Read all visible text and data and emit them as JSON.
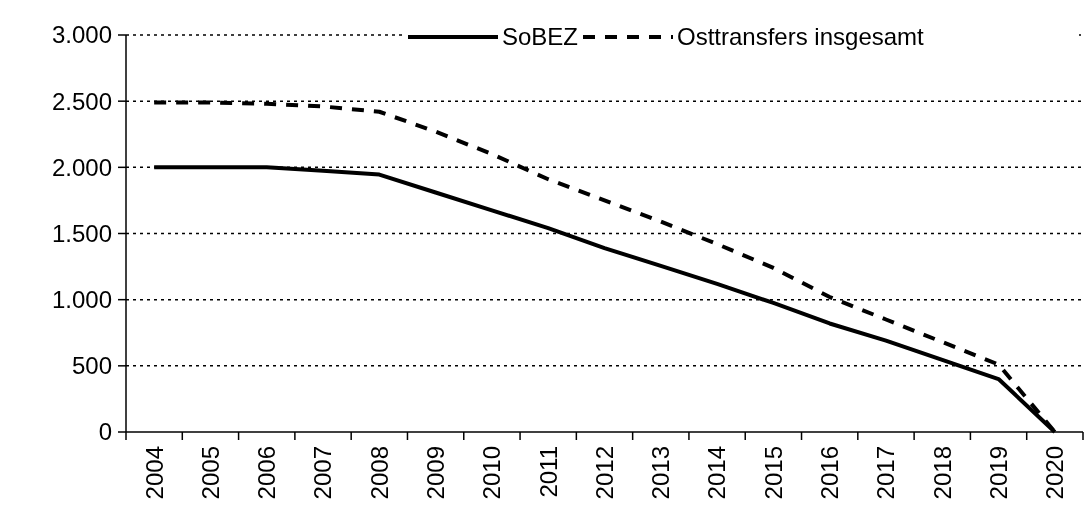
{
  "chart_data": {
    "type": "line",
    "categories": [
      "2004",
      "2005",
      "2006",
      "2007",
      "2008",
      "2009",
      "2010",
      "2011",
      "2012",
      "2013",
      "2014",
      "2015",
      "2016",
      "2017",
      "2018",
      "2019",
      "2020"
    ],
    "series": [
      {
        "name": "SoBEZ",
        "color": "#000000",
        "line_style": "solid",
        "values": [
          2000,
          2000,
          2000,
          1975,
          1945,
          1810,
          1675,
          1540,
          1390,
          1255,
          1120,
          975,
          820,
          690,
          545,
          400,
          0
        ]
      },
      {
        "name": "Osttransfers insgesamt",
        "color": "#000000",
        "line_style": "dashed",
        "values": [
          2490,
          2490,
          2480,
          2460,
          2420,
          2270,
          2100,
          1910,
          1750,
          1590,
          1420,
          1240,
          1020,
          850,
          680,
          510,
          0
        ]
      }
    ],
    "ylim": [
      0,
      3000
    ],
    "yticks": [
      {
        "value": 0,
        "label": "0"
      },
      {
        "value": 500,
        "label": "500"
      },
      {
        "value": 1000,
        "label": "1.000"
      },
      {
        "value": 1500,
        "label": "1.500"
      },
      {
        "value": 2000,
        "label": "2.000"
      },
      {
        "value": 2500,
        "label": "2.500"
      },
      {
        "value": 3000,
        "label": "3.000"
      }
    ],
    "grid": "y",
    "legend": "top right",
    "marker": "none"
  }
}
